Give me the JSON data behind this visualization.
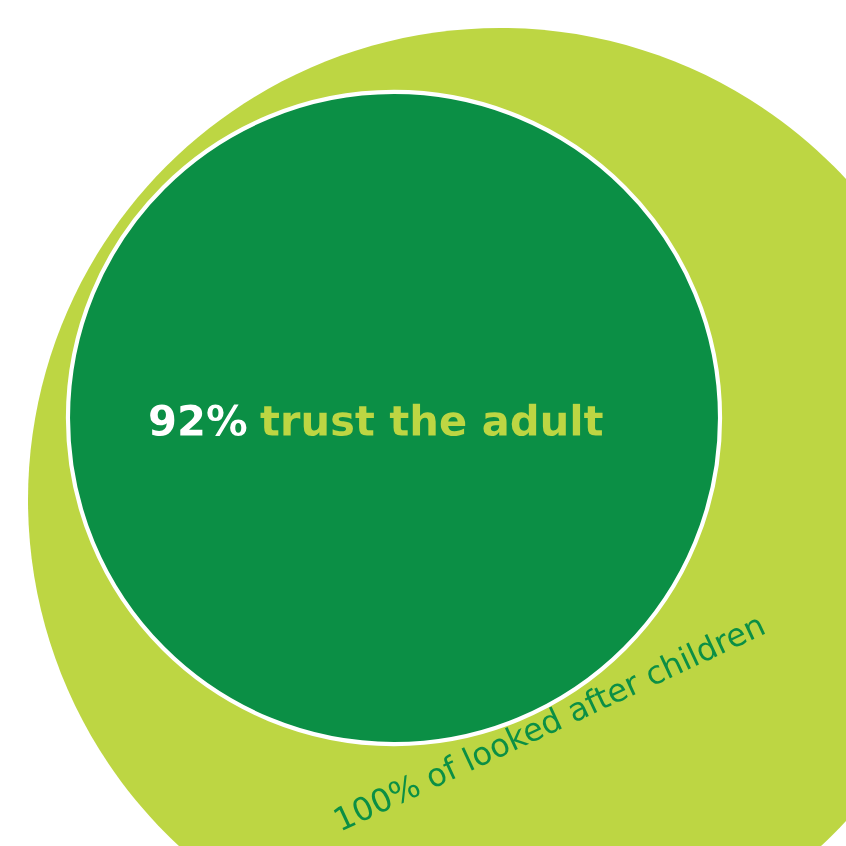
{
  "chart_data": {
    "type": "other",
    "categories": [
      "of looked after children",
      "trust the adult"
    ],
    "values": [
      100,
      92
    ],
    "value_labels": [
      "100%",
      "92%"
    ],
    "colors": [
      "#bdd643",
      "#0b8f45"
    ]
  }
}
